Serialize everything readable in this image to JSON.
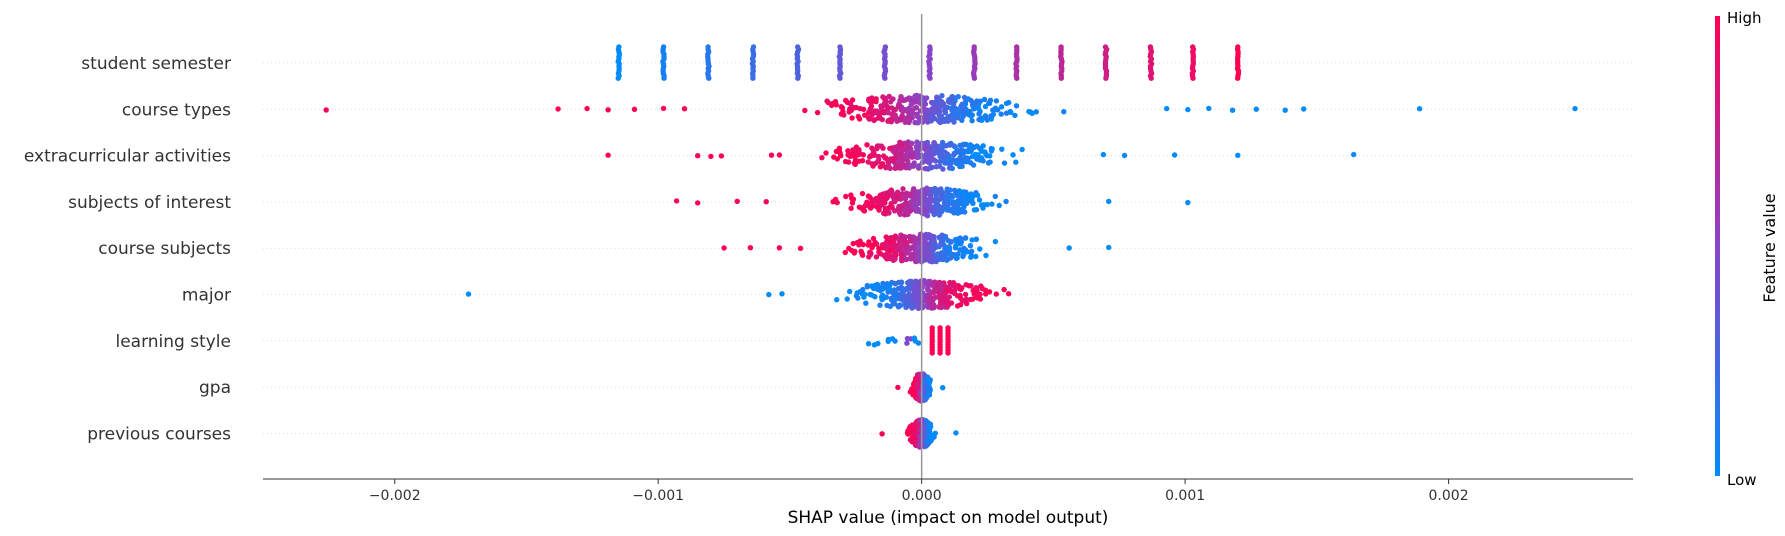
{
  "chart_data": {
    "type": "scatter",
    "subtype": "shap-beeswarm",
    "xlabel": "SHAP value (impact on model output)",
    "xlim": [
      -0.0025,
      0.0027
    ],
    "x_ticks": [
      -0.002,
      -0.001,
      0.0,
      0.001,
      0.002
    ],
    "x_tick_labels": [
      "−0.002",
      "−0.001",
      "0.000",
      "0.001",
      "0.002"
    ],
    "grid": false,
    "colorbar": {
      "title": "Feature value",
      "high_label": "High",
      "low_label": "Low",
      "low_color": "#008bfb",
      "high_color": "#ff0052"
    },
    "features": [
      {
        "name": "student semester",
        "kind": "discrete",
        "clusters": [
          {
            "x": -0.00115,
            "v": 0.0
          },
          {
            "x": -0.00098,
            "v": 0.07
          },
          {
            "x": -0.00081,
            "v": 0.14
          },
          {
            "x": -0.00064,
            "v": 0.21
          },
          {
            "x": -0.00047,
            "v": 0.28
          },
          {
            "x": -0.00031,
            "v": 0.36
          },
          {
            "x": -0.00014,
            "v": 0.43
          },
          {
            "x": 3e-05,
            "v": 0.5
          },
          {
            "x": 0.0002,
            "v": 0.57
          },
          {
            "x": 0.00036,
            "v": 0.64
          },
          {
            "x": 0.00053,
            "v": 0.71
          },
          {
            "x": 0.0007,
            "v": 0.79
          },
          {
            "x": 0.00087,
            "v": 0.86
          },
          {
            "x": 0.00103,
            "v": 0.93
          },
          {
            "x": 0.0012,
            "v": 1.0
          }
        ]
      },
      {
        "name": "course types",
        "kind": "continuous",
        "direction": "high-negative",
        "spread": 0.0007,
        "outliers_low": [
          -0.00226,
          -0.00138,
          -0.00127,
          -0.00119,
          -0.00109,
          -0.00098,
          -0.0009
        ],
        "outliers_high": [
          0.00093,
          0.00101,
          0.00109,
          0.00118,
          0.00127,
          0.00138,
          0.00145,
          0.00189,
          0.00248
        ]
      },
      {
        "name": "extracurricular activities",
        "kind": "continuous",
        "direction": "high-negative",
        "spread": 0.0006,
        "outliers_low": [
          -0.00119,
          -0.00085,
          -0.0008,
          -0.00076,
          -0.00057,
          -0.00054
        ],
        "outliers_high": [
          0.00069,
          0.00077,
          0.00096,
          0.0012,
          0.00164
        ]
      },
      {
        "name": "subjects of interest",
        "kind": "continuous",
        "direction": "high-negative",
        "spread": 0.0005,
        "outliers_low": [
          -0.00093,
          -0.00085,
          -0.0007,
          -0.00059
        ],
        "outliers_high": [
          0.00071,
          0.00101
        ]
      },
      {
        "name": "course subjects",
        "kind": "continuous",
        "direction": "high-negative",
        "spread": 0.00045,
        "outliers_low": [
          -0.00075,
          -0.00065,
          -0.00054,
          -0.00046
        ],
        "outliers_high": [
          0.00056,
          0.00071
        ]
      },
      {
        "name": "major",
        "kind": "continuous",
        "direction": "high-positive",
        "spread": 0.00045,
        "outliers_low": [
          -0.00172,
          -0.00058,
          -0.00053
        ],
        "outliers_high": [
          0.00033
        ]
      },
      {
        "name": "learning style",
        "kind": "grouped",
        "groups": [
          {
            "x": -0.00021,
            "v": 0.0,
            "n": 3,
            "w": 5e-05
          },
          {
            "x": -0.00011,
            "v": 0.0,
            "n": 4,
            "w": 2e-05
          },
          {
            "x": -5e-05,
            "v": 0.45,
            "n": 3,
            "w": 1e-05
          },
          {
            "x": -2e-05,
            "v": 0.0,
            "n": 3,
            "w": 1e-05
          },
          {
            "x": 4e-05,
            "v": 1.0,
            "n": 10,
            "w": 0.0
          },
          {
            "x": 7e-05,
            "v": 1.0,
            "n": 10,
            "w": 0.0
          },
          {
            "x": 0.0001,
            "v": 1.0,
            "n": 10,
            "w": 0.0
          }
        ]
      },
      {
        "name": "gpa",
        "kind": "continuous",
        "direction": "high-negative",
        "spread": 6e-05,
        "outliers_low": [
          -9e-05
        ],
        "outliers_high": [
          8e-05
        ]
      },
      {
        "name": "previous courses",
        "kind": "continuous",
        "direction": "high-negative",
        "spread": 8e-05,
        "outliers_low": [
          -0.00015
        ],
        "outliers_high": [
          0.00013
        ]
      }
    ]
  }
}
